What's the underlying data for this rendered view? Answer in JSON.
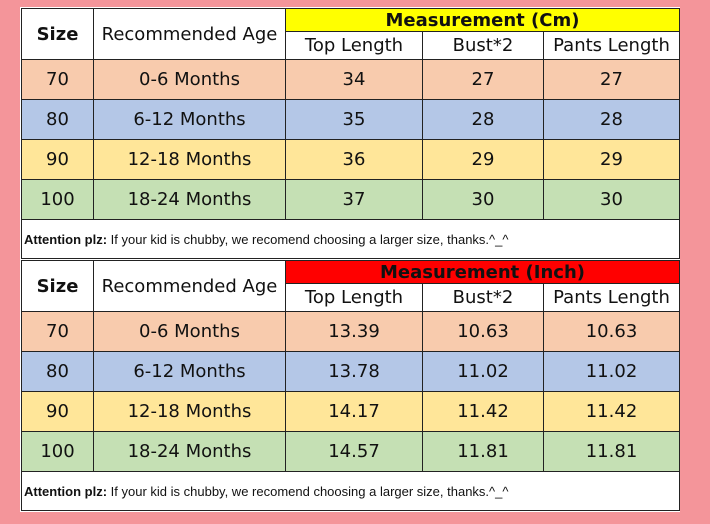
{
  "colors": {
    "page_background": "#f4959a",
    "cm_header": "#ffff00",
    "inch_header": "#ff0000",
    "row_70": "#f8cbad",
    "row_80": "#b4c7e7",
    "row_90": "#ffe699",
    "row_100": "#c5e0b4"
  },
  "columns": {
    "size": "Size",
    "age": "Recommended Age",
    "top_length": "Top Length",
    "bust": "Bust*2",
    "pants_length": "Pants Length"
  },
  "note": {
    "label": "Attention plz:",
    "text": " If your kid is chubby, we recomend choosing a larger size, thanks.^_^"
  },
  "table_cm": {
    "measurement_title": "Measurement (Cm)",
    "rows": [
      {
        "size": "70",
        "age": "0-6 Months",
        "top": "34",
        "bust": "27",
        "pants": "27"
      },
      {
        "size": "80",
        "age": "6-12 Months",
        "top": "35",
        "bust": "28",
        "pants": "28"
      },
      {
        "size": "90",
        "age": "12-18 Months",
        "top": "36",
        "bust": "29",
        "pants": "29"
      },
      {
        "size": "100",
        "age": "18-24 Months",
        "top": "37",
        "bust": "30",
        "pants": "30"
      }
    ]
  },
  "table_inch": {
    "measurement_title": "Measurement (Inch)",
    "rows": [
      {
        "size": "70",
        "age": "0-6 Months",
        "top": "13.39",
        "bust": "10.63",
        "pants": "10.63"
      },
      {
        "size": "80",
        "age": "6-12 Months",
        "top": "13.78",
        "bust": "11.02",
        "pants": "11.02"
      },
      {
        "size": "90",
        "age": "12-18 Months",
        "top": "14.17",
        "bust": "11.42",
        "pants": "11.42"
      },
      {
        "size": "100",
        "age": "18-24 Months",
        "top": "14.57",
        "bust": "11.81",
        "pants": "11.81"
      }
    ]
  }
}
